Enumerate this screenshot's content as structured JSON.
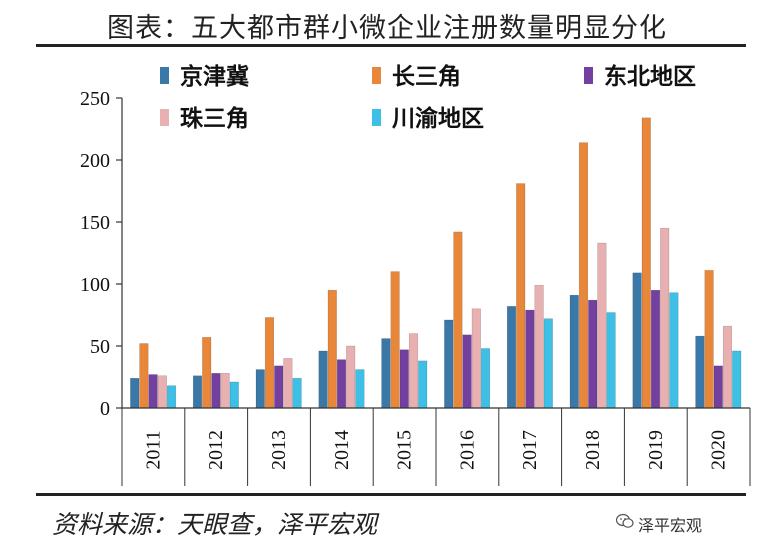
{
  "title": "图表：五大都市群小微企业注册数量明显分化",
  "source": "资料来源：天眼查，泽平宏观",
  "watermark": "泽平宏观",
  "watermark_icon": "wechat-icon",
  "chart_data": {
    "type": "bar",
    "title": "图表：五大都市群小微企业注册数量明显分化",
    "xlabel": "",
    "ylabel": "",
    "ylim": [
      0,
      250
    ],
    "yticks": [
      0,
      50,
      100,
      150,
      200,
      250
    ],
    "grid": false,
    "legend_position": "top",
    "categories": [
      "2011",
      "2012",
      "2013",
      "2014",
      "2015",
      "2016",
      "2017",
      "2018",
      "2019",
      "2020"
    ],
    "series": [
      {
        "name": "京津冀",
        "color": "#3a78a8",
        "values": [
          24,
          26,
          31,
          46,
          56,
          71,
          82,
          91,
          109,
          58
        ]
      },
      {
        "name": "长三角",
        "color": "#e8873a",
        "values": [
          52,
          57,
          73,
          95,
          110,
          142,
          181,
          214,
          234,
          111
        ]
      },
      {
        "name": "东北地区",
        "color": "#7440a0",
        "values": [
          27,
          28,
          34,
          39,
          47,
          59,
          79,
          87,
          95,
          34
        ]
      },
      {
        "name": "珠三角",
        "color": "#e8b0b0",
        "values": [
          26,
          28,
          40,
          50,
          60,
          80,
          99,
          133,
          145,
          66
        ]
      },
      {
        "name": "川渝地区",
        "color": "#3ec0e6",
        "values": [
          18,
          21,
          24,
          31,
          38,
          48,
          72,
          77,
          93,
          46
        ]
      }
    ]
  }
}
